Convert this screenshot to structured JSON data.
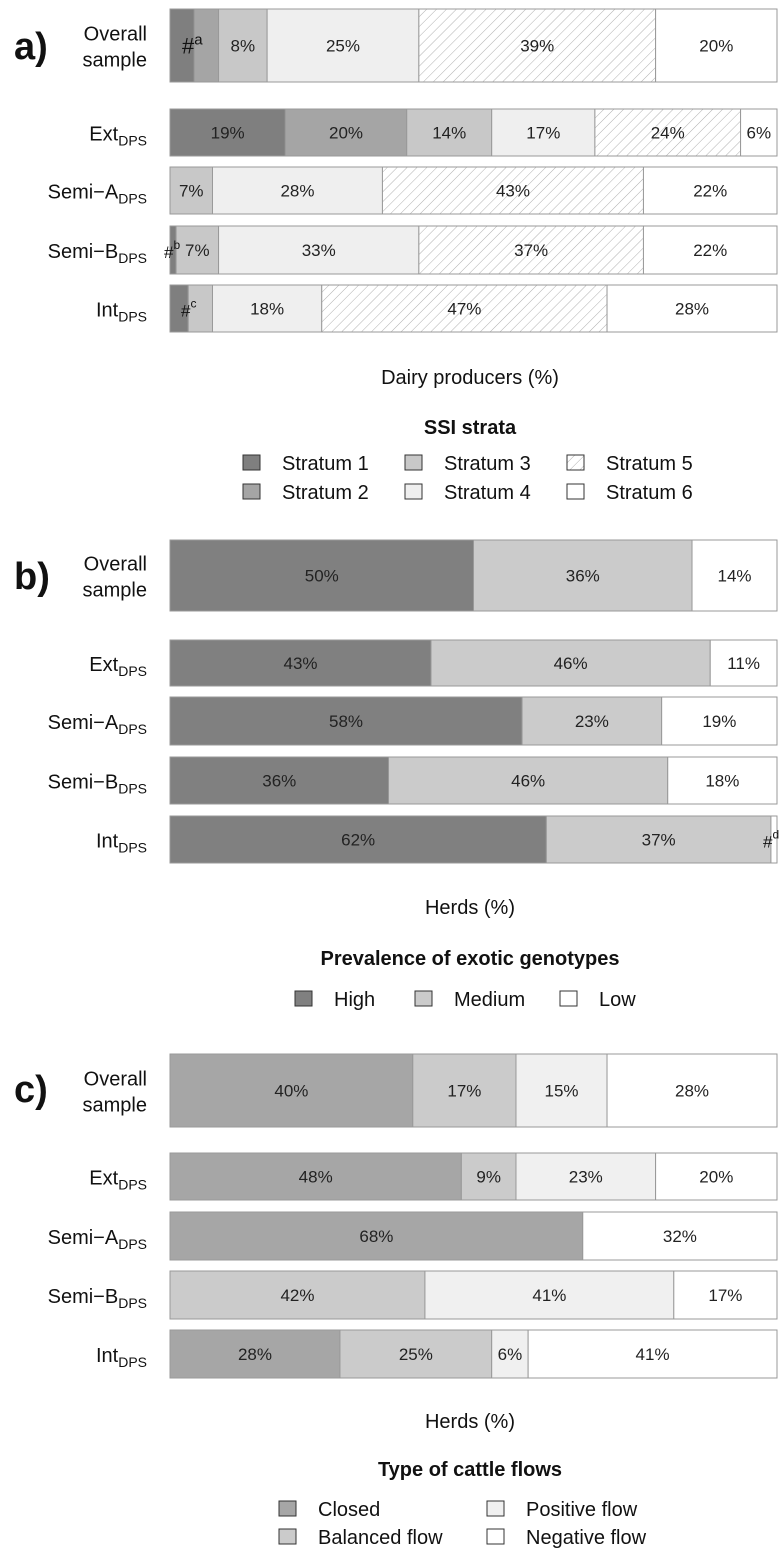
{
  "colors": {
    "stratum_1": "#7f7f7f",
    "stratum_2": "#a5a5a5",
    "stratum_3": "#c8c8c8",
    "stratum_4": "#efefef",
    "stratum_5": "#ffffff",
    "stratum_6": "#ffffff",
    "high": "#808080",
    "medium": "#cbcbcb",
    "low": "#ffffff",
    "closed": "#a6a6a6",
    "balanced": "#cbcbcb",
    "positive": "#f0f0f0",
    "negative": "#ffffff",
    "border": "#999999"
  },
  "chart_data": [
    {
      "type": "bar",
      "orientation": "horizontal-stacked",
      "panel_label": "a)",
      "xlabel": "Dairy producers (%)",
      "legend_title": "SSI strata",
      "legend_placement": "bottom",
      "categories": [
        {
          "main": "Overall",
          "sub": "",
          "line2": "sample"
        },
        {
          "main": "Ext",
          "sub": "DPS",
          "line2": ""
        },
        {
          "main": "Semi−A",
          "sub": "DPS",
          "line2": ""
        },
        {
          "main": "Semi−B",
          "sub": "DPS",
          "line2": ""
        },
        {
          "main": "Int",
          "sub": "DPS",
          "line2": ""
        }
      ],
      "series": [
        {
          "name": "Stratum 1",
          "color": "stratum_1",
          "hatch": false,
          "values": [
            4,
            19,
            0,
            1,
            3
          ],
          "labels": [
            "",
            "19%",
            "",
            "",
            ""
          ]
        },
        {
          "name": "Stratum 2",
          "color": "stratum_2",
          "hatch": false,
          "values": [
            4,
            20,
            0,
            0,
            0
          ],
          "labels": [
            "",
            "20%",
            "",
            "",
            ""
          ]
        },
        {
          "name": "Stratum 3",
          "color": "stratum_3",
          "hatch": false,
          "values": [
            8,
            14,
            7,
            7,
            4
          ],
          "labels": [
            "8%",
            "14%",
            "7%",
            "7%",
            ""
          ]
        },
        {
          "name": "Stratum 4",
          "color": "stratum_4",
          "hatch": false,
          "values": [
            25,
            17,
            28,
            33,
            18
          ],
          "labels": [
            "25%",
            "17%",
            "28%",
            "33%",
            "18%"
          ]
        },
        {
          "name": "Stratum 5",
          "color": "stratum_5",
          "hatch": true,
          "values": [
            39,
            24,
            43,
            37,
            47
          ],
          "labels": [
            "39%",
            "24%",
            "43%",
            "37%",
            "47%"
          ]
        },
        {
          "name": "Stratum 6",
          "color": "stratum_6",
          "hatch": false,
          "values": [
            20,
            6,
            22,
            22,
            28
          ],
          "labels": [
            "20%",
            "6%",
            "22%",
            "22%",
            "28%"
          ]
        }
      ],
      "annotations": [
        {
          "category": 0,
          "text": "#",
          "sup": "a"
        },
        {
          "category": 3,
          "text": "#",
          "sup": "b"
        },
        {
          "category": 4,
          "text": "#",
          "sup": "c"
        }
      ]
    },
    {
      "type": "bar",
      "orientation": "horizontal-stacked",
      "panel_label": "b)",
      "xlabel": "Herds (%)",
      "legend_title": "Prevalence of exotic genotypes",
      "legend_placement": "bottom",
      "categories": [
        {
          "main": "Overall",
          "sub": "",
          "line2": "sample"
        },
        {
          "main": "Ext",
          "sub": "DPS",
          "line2": ""
        },
        {
          "main": "Semi−A",
          "sub": "DPS",
          "line2": ""
        },
        {
          "main": "Semi−B",
          "sub": "DPS",
          "line2": ""
        },
        {
          "main": "Int",
          "sub": "DPS",
          "line2": ""
        }
      ],
      "series": [
        {
          "name": "High",
          "color": "high",
          "hatch": false,
          "values": [
            50,
            43,
            58,
            36,
            62
          ],
          "labels": [
            "50%",
            "43%",
            "58%",
            "36%",
            "62%"
          ]
        },
        {
          "name": "Medium",
          "color": "medium",
          "hatch": false,
          "values": [
            36,
            46,
            23,
            46,
            37
          ],
          "labels": [
            "36%",
            "46%",
            "23%",
            "46%",
            "37%"
          ]
        },
        {
          "name": "Low",
          "color": "low",
          "hatch": false,
          "values": [
            14,
            11,
            19,
            18,
            1
          ],
          "labels": [
            "14%",
            "11%",
            "19%",
            "18%",
            ""
          ]
        }
      ],
      "annotations": [
        {
          "category": 4,
          "text": "#",
          "sup": "d"
        }
      ]
    },
    {
      "type": "bar",
      "orientation": "horizontal-stacked",
      "panel_label": "c)",
      "xlabel": "Herds (%)",
      "legend_title": "Type of cattle flows",
      "legend_placement": "bottom",
      "categories": [
        {
          "main": "Overall",
          "sub": "",
          "line2": "sample"
        },
        {
          "main": "Ext",
          "sub": "DPS",
          "line2": ""
        },
        {
          "main": "Semi−A",
          "sub": "DPS",
          "line2": ""
        },
        {
          "main": "Semi−B",
          "sub": "DPS",
          "line2": ""
        },
        {
          "main": "Int",
          "sub": "DPS",
          "line2": ""
        }
      ],
      "series": [
        {
          "name": "Closed",
          "color": "closed",
          "hatch": false,
          "values": [
            40,
            48,
            68,
            0,
            28
          ],
          "labels": [
            "40%",
            "48%",
            "68%",
            "",
            "28%"
          ]
        },
        {
          "name": "Balanced flow",
          "color": "balanced",
          "hatch": false,
          "values": [
            17,
            9,
            0,
            42,
            25
          ],
          "labels": [
            "17%",
            "9%",
            "",
            "42%",
            "25%"
          ]
        },
        {
          "name": "Positive flow",
          "color": "positive",
          "hatch": false,
          "values": [
            15,
            23,
            0,
            41,
            6
          ],
          "labels": [
            "15%",
            "23%",
            "",
            "41%",
            "6%"
          ]
        },
        {
          "name": "Negative flow",
          "color": "negative",
          "hatch": false,
          "values": [
            28,
            20,
            32,
            17,
            41
          ],
          "labels": [
            "28%",
            "20%",
            "32%",
            "17%",
            "41%"
          ]
        }
      ],
      "annotations": []
    }
  ]
}
